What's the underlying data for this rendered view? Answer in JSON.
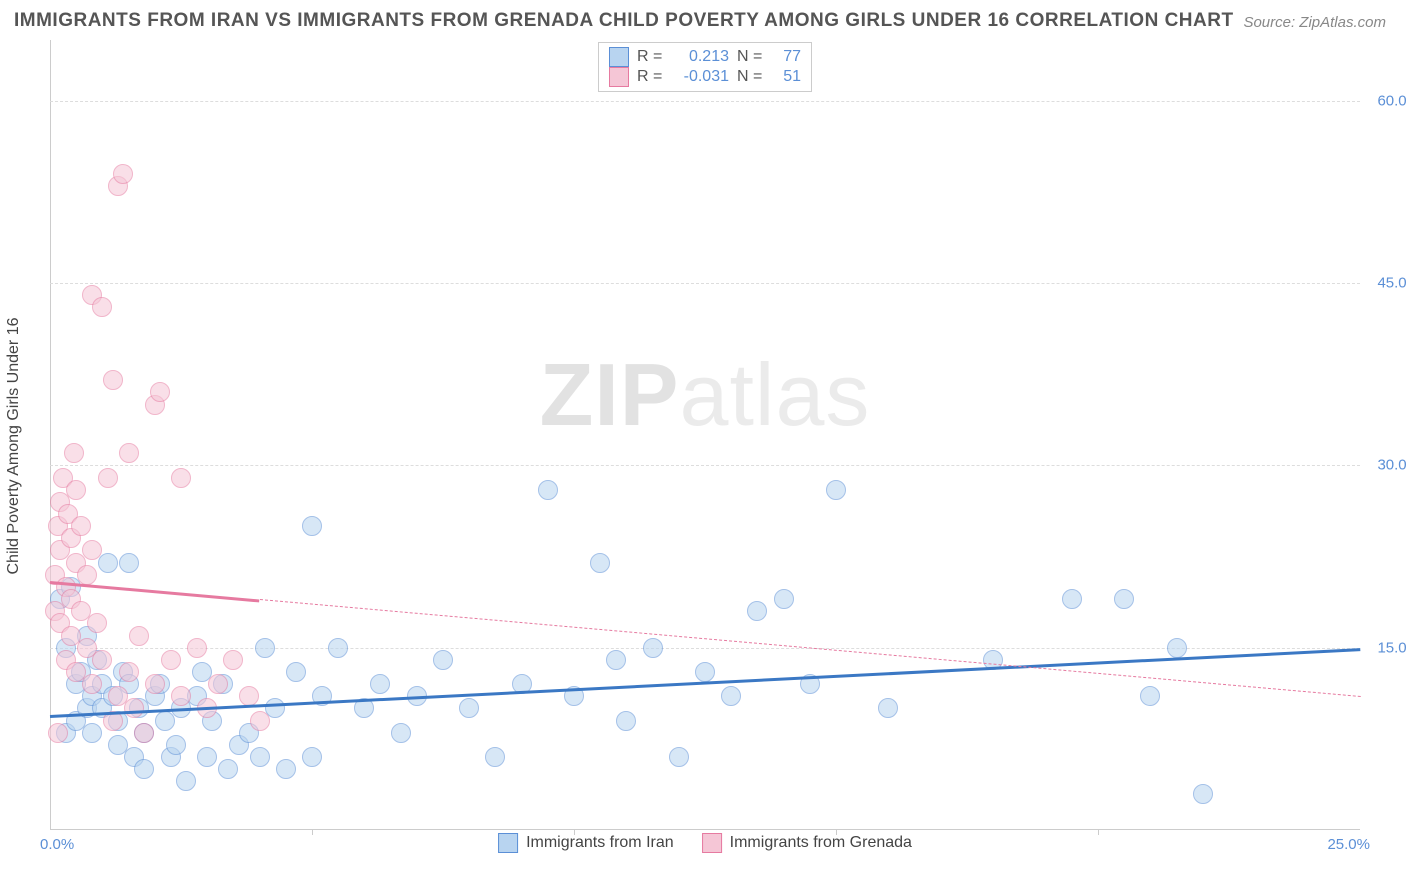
{
  "title": "IMMIGRANTS FROM IRAN VS IMMIGRANTS FROM GRENADA CHILD POVERTY AMONG GIRLS UNDER 16 CORRELATION CHART",
  "source": "Source: ZipAtlas.com",
  "ylabel": "Child Poverty Among Girls Under 16",
  "watermark": {
    "part1": "ZIP",
    "part2": "atlas"
  },
  "chart": {
    "type": "scatter",
    "background_color": "#ffffff",
    "grid_color": "#dddddd",
    "axis_color": "#cccccc",
    "xlim": [
      0,
      25
    ],
    "ylim": [
      0,
      65
    ],
    "ytick_values": [
      15,
      30,
      45,
      60
    ],
    "ytick_labels": [
      "15.0%",
      "30.0%",
      "45.0%",
      "60.0%"
    ],
    "xtick_values": [
      5,
      10,
      15,
      20
    ],
    "xaxis_end_labels": {
      "min": "0.0%",
      "max": "25.0%"
    },
    "ytick_color": "#5b8fd6",
    "xtick_color": "#5b8fd6",
    "label_fontsize": 16,
    "tick_fontsize": 15,
    "marker_radius": 10,
    "series": [
      {
        "name": "Immigrants from Iran",
        "fill": "#b8d4f0",
        "stroke": "#5b8fd6",
        "R": "0.213",
        "N": "77",
        "trend": {
          "x1": 0,
          "y1": 9.5,
          "x2": 25,
          "y2": 15.0,
          "solid_until_x": 25,
          "color": "#3b78c4"
        },
        "points": [
          [
            0.2,
            19
          ],
          [
            0.3,
            15
          ],
          [
            0.3,
            8
          ],
          [
            0.4,
            20
          ],
          [
            0.5,
            12
          ],
          [
            0.5,
            9
          ],
          [
            0.6,
            13
          ],
          [
            0.7,
            16
          ],
          [
            0.7,
            10
          ],
          [
            0.8,
            11
          ],
          [
            0.8,
            8
          ],
          [
            0.9,
            14
          ],
          [
            1.0,
            12
          ],
          [
            1.0,
            10
          ],
          [
            1.1,
            22
          ],
          [
            1.2,
            11
          ],
          [
            1.3,
            9
          ],
          [
            1.3,
            7
          ],
          [
            1.4,
            13
          ],
          [
            1.5,
            12
          ],
          [
            1.5,
            22
          ],
          [
            1.6,
            6
          ],
          [
            1.7,
            10
          ],
          [
            1.8,
            8
          ],
          [
            1.8,
            5
          ],
          [
            2.0,
            11
          ],
          [
            2.1,
            12
          ],
          [
            2.2,
            9
          ],
          [
            2.3,
            6
          ],
          [
            2.4,
            7
          ],
          [
            2.5,
            10
          ],
          [
            2.6,
            4
          ],
          [
            2.8,
            11
          ],
          [
            2.9,
            13
          ],
          [
            3.0,
            6
          ],
          [
            3.1,
            9
          ],
          [
            3.3,
            12
          ],
          [
            3.4,
            5
          ],
          [
            3.6,
            7
          ],
          [
            3.8,
            8
          ],
          [
            4.0,
            6
          ],
          [
            4.1,
            15
          ],
          [
            4.3,
            10
          ],
          [
            4.5,
            5
          ],
          [
            4.7,
            13
          ],
          [
            5.0,
            25
          ],
          [
            5.0,
            6
          ],
          [
            5.2,
            11
          ],
          [
            5.5,
            15
          ],
          [
            6.0,
            10
          ],
          [
            6.3,
            12
          ],
          [
            6.7,
            8
          ],
          [
            7.0,
            11
          ],
          [
            7.5,
            14
          ],
          [
            8.0,
            10
          ],
          [
            8.5,
            6
          ],
          [
            9.0,
            12
          ],
          [
            9.5,
            28
          ],
          [
            10.0,
            11
          ],
          [
            10.5,
            22
          ],
          [
            10.8,
            14
          ],
          [
            11.0,
            9
          ],
          [
            11.5,
            15
          ],
          [
            12.0,
            6
          ],
          [
            12.5,
            13
          ],
          [
            13.0,
            11
          ],
          [
            13.5,
            18
          ],
          [
            14.0,
            19
          ],
          [
            14.5,
            12
          ],
          [
            15.0,
            28
          ],
          [
            16.0,
            10
          ],
          [
            18.0,
            14
          ],
          [
            19.5,
            19
          ],
          [
            20.5,
            19
          ],
          [
            21.0,
            11
          ],
          [
            22.0,
            3
          ],
          [
            21.5,
            15
          ]
        ]
      },
      {
        "name": "Immigrants from Grenada",
        "fill": "#f5c6d6",
        "stroke": "#e67aa0",
        "R": "-0.031",
        "N": "51",
        "trend": {
          "x1": 0,
          "y1": 20.5,
          "x2": 25,
          "y2": 11.0,
          "solid_until_x": 4,
          "color": "#e67aa0"
        },
        "points": [
          [
            0.1,
            21
          ],
          [
            0.1,
            18
          ],
          [
            0.15,
            25
          ],
          [
            0.2,
            27
          ],
          [
            0.2,
            23
          ],
          [
            0.2,
            17
          ],
          [
            0.25,
            29
          ],
          [
            0.3,
            20
          ],
          [
            0.3,
            14
          ],
          [
            0.35,
            26
          ],
          [
            0.4,
            19
          ],
          [
            0.4,
            16
          ],
          [
            0.4,
            24
          ],
          [
            0.45,
            31
          ],
          [
            0.5,
            22
          ],
          [
            0.5,
            13
          ],
          [
            0.5,
            28
          ],
          [
            0.6,
            18
          ],
          [
            0.6,
            25
          ],
          [
            0.7,
            15
          ],
          [
            0.7,
            21
          ],
          [
            0.8,
            12
          ],
          [
            0.8,
            23
          ],
          [
            0.8,
            44
          ],
          [
            0.9,
            17
          ],
          [
            1.0,
            14
          ],
          [
            1.0,
            43
          ],
          [
            1.1,
            29
          ],
          [
            1.2,
            9
          ],
          [
            1.2,
            37
          ],
          [
            1.3,
            11
          ],
          [
            1.3,
            53
          ],
          [
            1.4,
            54
          ],
          [
            1.5,
            13
          ],
          [
            1.5,
            31
          ],
          [
            1.6,
            10
          ],
          [
            1.7,
            16
          ],
          [
            1.8,
            8
          ],
          [
            2.0,
            35
          ],
          [
            2.0,
            12
          ],
          [
            2.1,
            36
          ],
          [
            2.3,
            14
          ],
          [
            2.5,
            29
          ],
          [
            2.5,
            11
          ],
          [
            2.8,
            15
          ],
          [
            3.0,
            10
          ],
          [
            3.2,
            12
          ],
          [
            3.5,
            14
          ],
          [
            3.8,
            11
          ],
          [
            4.0,
            9
          ],
          [
            0.15,
            8
          ]
        ]
      }
    ],
    "legend_bottom": [
      {
        "label": "Immigrants from Iran",
        "fill": "#b8d4f0",
        "stroke": "#5b8fd6"
      },
      {
        "label": "Immigrants from Grenada",
        "fill": "#f5c6d6",
        "stroke": "#e67aa0"
      }
    ]
  }
}
